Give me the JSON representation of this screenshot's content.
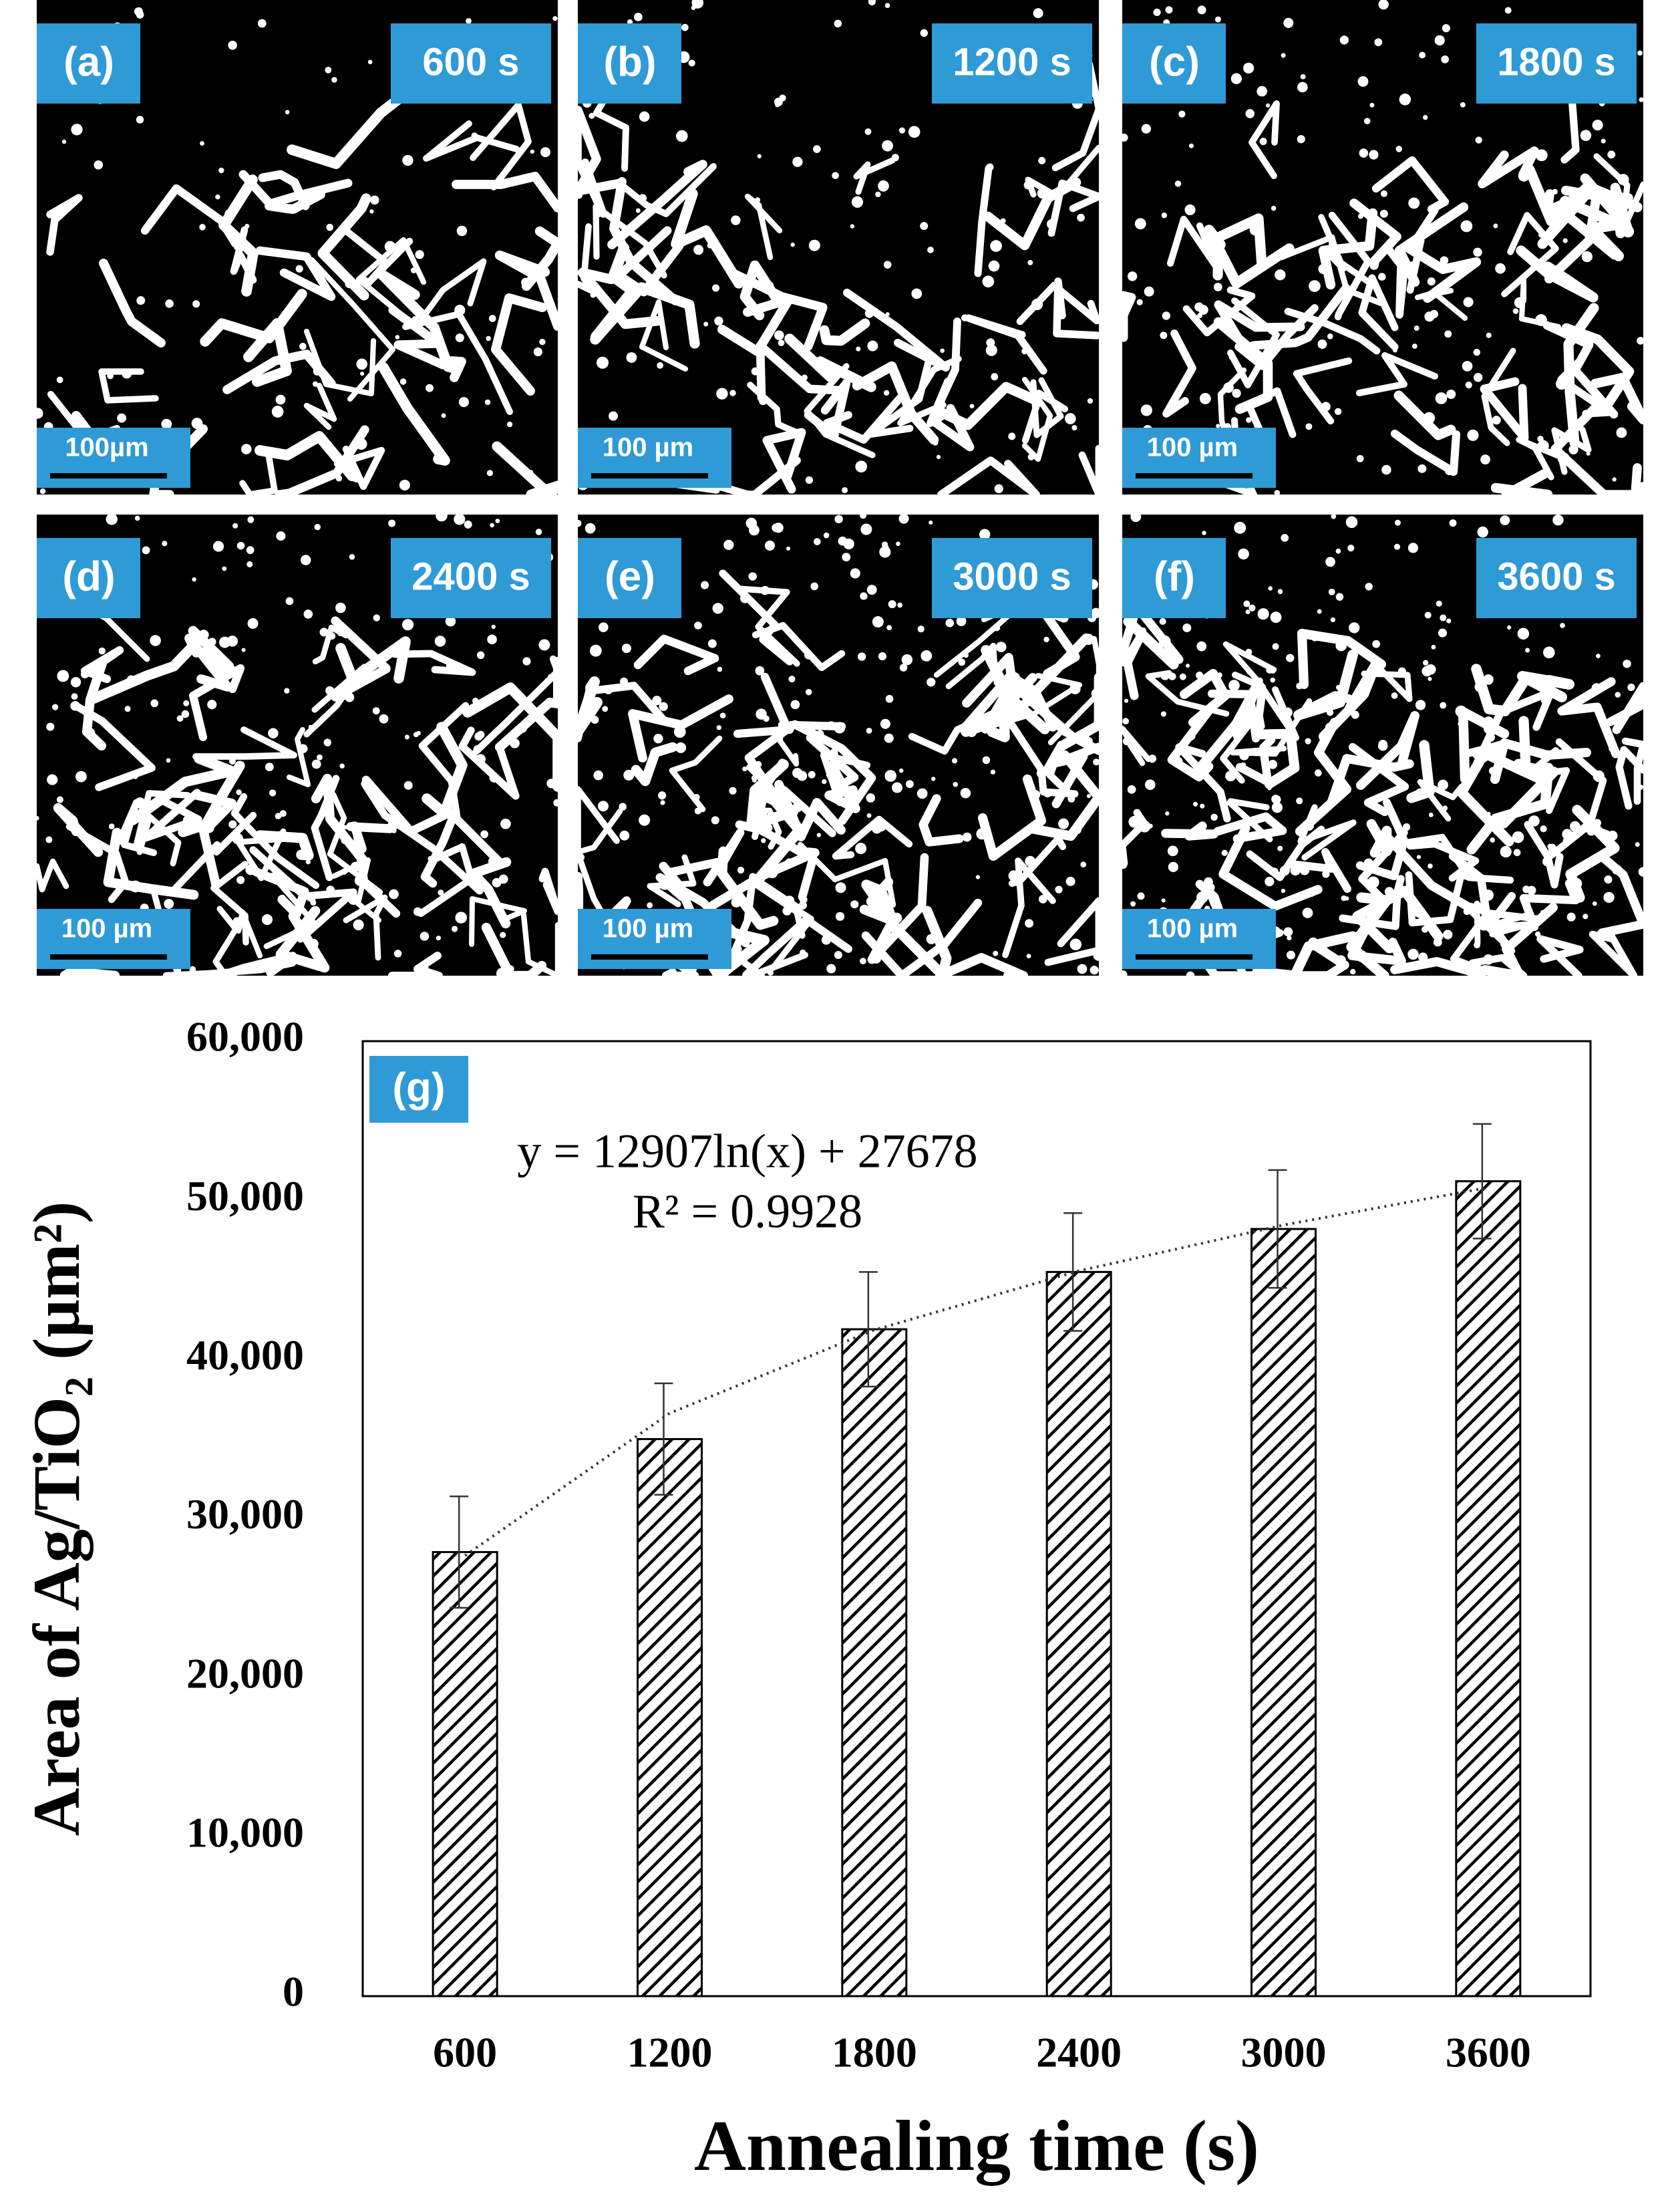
{
  "panels": [
    {
      "label": "(a)",
      "time": "600 s",
      "scale": "100µm"
    },
    {
      "label": "(b)",
      "time": "1200 s",
      "scale": "100 µm"
    },
    {
      "label": "(c)",
      "time": "1800 s",
      "scale": "100 µm"
    },
    {
      "label": "(d)",
      "time": "2400 s",
      "scale": "100 µm"
    },
    {
      "label": "(e)",
      "time": "3000 s",
      "scale": "100 µm"
    },
    {
      "label": "(f)",
      "time": "3600 s",
      "scale": "100 µm"
    }
  ],
  "chart_data": {
    "type": "bar",
    "panel_label": "(g)",
    "annotations": [
      "y = 12907ln(x) + 27678",
      "R² = 0.9928"
    ],
    "x_label": "Annealing time (s)",
    "y_label": "Area of Ag/TiO₂ (µm²)",
    "categories": [
      "600",
      "1200",
      "1800",
      "2400",
      "3000",
      "3600"
    ],
    "values": [
      27900,
      35000,
      41900,
      45500,
      48200,
      51200
    ],
    "errors": [
      3500,
      3500,
      3600,
      3700,
      3700,
      3600
    ],
    "trendline": {
      "values": [
        27678,
        36625,
        41858,
        45571,
        48451,
        50804
      ]
    },
    "ylim": [
      0,
      60000
    ],
    "yticks": [
      0,
      {
        "value": 10000,
        "label": "10,000"
      },
      {
        "value": 20000,
        "label": "20,000"
      },
      {
        "value": 30000,
        "label": "30,000"
      },
      {
        "value": 40000,
        "label": "40,000"
      },
      {
        "value": 50000,
        "label": "50,000"
      },
      {
        "value": 60000,
        "label": "60,000"
      }
    ],
    "color": "#000000",
    "grid": false
  }
}
